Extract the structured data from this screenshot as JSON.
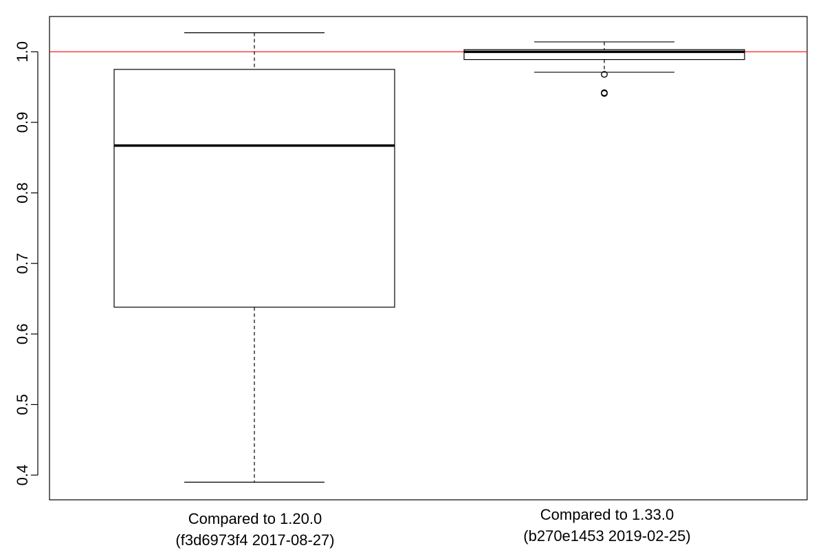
{
  "chart_data": {
    "type": "boxplot",
    "title": "",
    "xlabel": "",
    "ylabel": "",
    "ylim": [
      0.365,
      1.05
    ],
    "yticks": [
      "0.4",
      "0.5",
      "0.6",
      "0.7",
      "0.8",
      "0.9",
      "1.0"
    ],
    "reference_line": {
      "y": 1.0,
      "color": "#ff0000"
    },
    "grid": false,
    "categories": [
      {
        "line1": "Compared to 1.20.0",
        "line2": "(f3d6973f4 2017-08-27)"
      },
      {
        "line1": "Compared to 1.33.0",
        "line2": "(b270e1453 2019-02-25)"
      }
    ],
    "boxes": [
      {
        "whisker_low": 0.39,
        "q1": 0.638,
        "median": 0.867,
        "q3": 0.975,
        "whisker_high": 1.027,
        "outliers": []
      },
      {
        "whisker_low": 0.971,
        "q1": 0.989,
        "median": 1.0,
        "q3": 1.003,
        "whisker_high": 1.014,
        "outliers": [
          0.968,
          0.942,
          0.941
        ]
      }
    ]
  }
}
